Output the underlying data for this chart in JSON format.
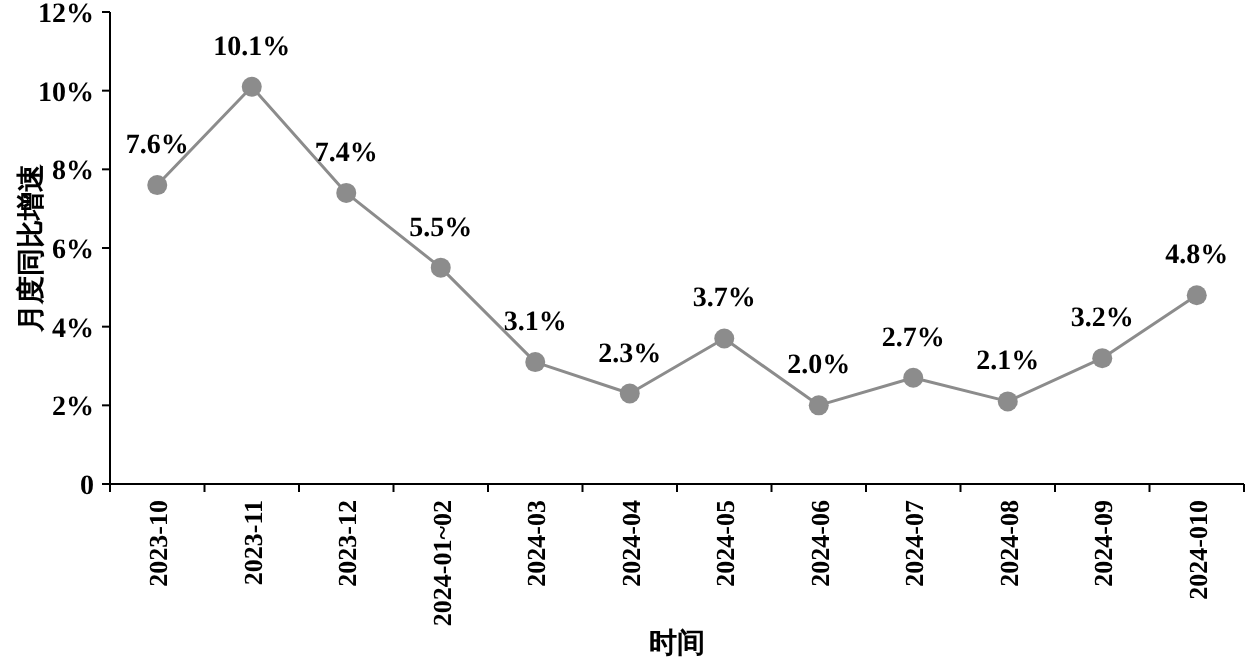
{
  "chart_data": {
    "type": "line",
    "xlabel": "时间",
    "ylabel": "月度同比增速",
    "categories": [
      "2023-10",
      "2023-11",
      "2023-12",
      "2024-01~02",
      "2024-03",
      "2024-04",
      "2024-05",
      "2024-06",
      "2024-07",
      "2024-08",
      "2024-09",
      "2024-010"
    ],
    "series": [
      {
        "color": "#8c8c8c",
        "values": [
          7.6,
          10.1,
          7.4,
          5.5,
          3.1,
          2.3,
          3.7,
          2.0,
          2.7,
          2.1,
          3.2,
          4.8
        ],
        "value_labels": [
          "7.6%",
          "10.1%",
          "7.4%",
          "5.5%",
          "3.1%",
          "2.3%",
          "3.7%",
          "2.0%",
          "2.7%",
          "2.1%",
          "3.2%",
          "4.8%"
        ]
      }
    ],
    "ylim": [
      0,
      12
    ],
    "yticks": [
      0,
      {
        "value": 2,
        "label": "2%"
      },
      {
        "value": 4,
        "label": "4%"
      },
      {
        "value": 6,
        "label": "6%"
      },
      {
        "value": 8,
        "label": "8%"
      },
      {
        "value": 10,
        "label": "10%"
      },
      {
        "value": 12,
        "label": "12%"
      }
    ],
    "marker": "circle",
    "grid": false
  }
}
